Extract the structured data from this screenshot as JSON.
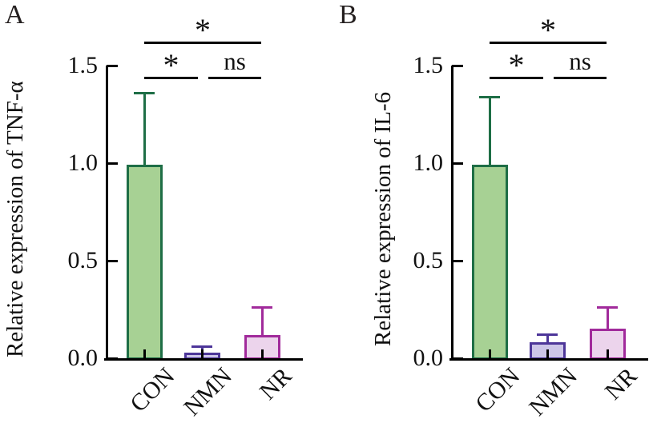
{
  "figure": {
    "background": "#ffffff",
    "axis_color": "#000000",
    "text_color": "#111111"
  },
  "chart_data": [
    {
      "type": "bar",
      "panel_label": "A",
      "ylabel": "Relative expression of TNF-α",
      "xlabel": "",
      "categories": [
        "CON",
        "NMN",
        "NR"
      ],
      "values": [
        0.99,
        0.03,
        0.12
      ],
      "errors_upper": [
        0.37,
        0.03,
        0.14
      ],
      "ylim": [
        0,
        1.5
      ],
      "yticks": [
        0.0,
        0.5,
        1.0,
        1.5
      ],
      "ytick_labels": [
        "0.0",
        "0.5",
        "1.0",
        "1.5"
      ],
      "grid": false,
      "legend": "none",
      "bar_styles": [
        {
          "fill": "#a7d194",
          "edge": "#1e6e46"
        },
        {
          "fill": "#cdc6e8",
          "edge": "#4d3699"
        },
        {
          "fill": "#ecd4ec",
          "edge": "#a12a9b"
        }
      ],
      "significance": [
        {
          "between": [
            "CON",
            "NR"
          ],
          "label": "*",
          "row": "top"
        },
        {
          "between": [
            "CON",
            "NMN"
          ],
          "label": "*",
          "row": "lower"
        },
        {
          "between": [
            "NMN",
            "NR"
          ],
          "label": "ns",
          "row": "lower"
        }
      ]
    },
    {
      "type": "bar",
      "panel_label": "B",
      "ylabel": "Relative expression of IL-6",
      "xlabel": "",
      "categories": [
        "CON",
        "NMN",
        "NR"
      ],
      "values": [
        0.99,
        0.08,
        0.15
      ],
      "errors_upper": [
        0.35,
        0.04,
        0.11
      ],
      "ylim": [
        0,
        1.5
      ],
      "yticks": [
        0.0,
        0.5,
        1.0,
        1.5
      ],
      "ytick_labels": [
        "0.0",
        "0.5",
        "1.0",
        "1.5"
      ],
      "grid": false,
      "legend": "none",
      "bar_styles": [
        {
          "fill": "#a7d194",
          "edge": "#1e6e46"
        },
        {
          "fill": "#cdc6e8",
          "edge": "#4d3699"
        },
        {
          "fill": "#ecd4ec",
          "edge": "#a12a9b"
        }
      ],
      "significance": [
        {
          "between": [
            "CON",
            "NR"
          ],
          "label": "*",
          "row": "top"
        },
        {
          "between": [
            "CON",
            "NMN"
          ],
          "label": "*",
          "row": "lower"
        },
        {
          "between": [
            "NMN",
            "NR"
          ],
          "label": "ns",
          "row": "lower"
        }
      ]
    }
  ]
}
